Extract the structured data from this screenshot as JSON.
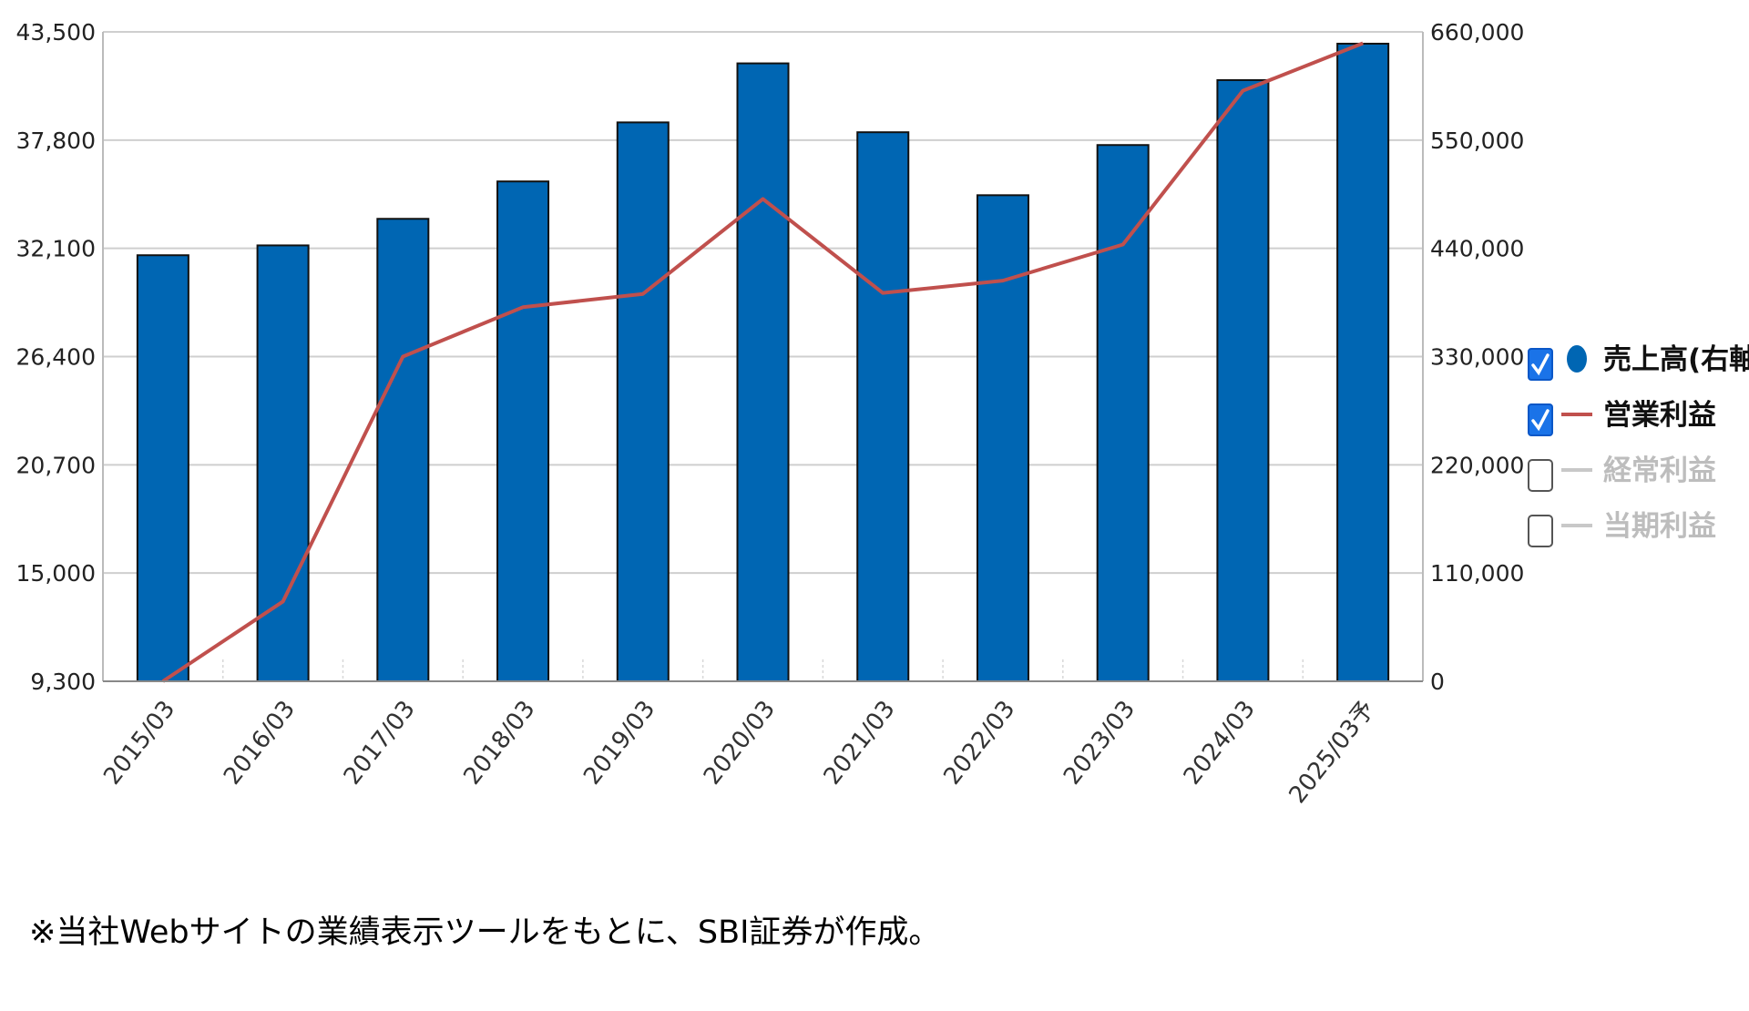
{
  "chart_data": {
    "type": "bar",
    "categories": [
      "2015/03",
      "2016/03",
      "2017/03",
      "2018/03",
      "2019/03",
      "2020/03",
      "2021/03",
      "2022/03",
      "2023/03",
      "2024/03",
      "2025/03予"
    ],
    "series": [
      {
        "name": "売上高(右軸)",
        "type": "bar",
        "axis": "right",
        "color": "#0066b3",
        "values": [
          433000,
          443000,
          470000,
          508000,
          568000,
          628000,
          558000,
          494000,
          545000,
          611000,
          648000
        ]
      },
      {
        "name": "営業利益",
        "type": "line",
        "axis": "left",
        "color": "#c0504d",
        "values": [
          9300,
          13500,
          26400,
          29000,
          29700,
          34700,
          29750,
          30400,
          32300,
          40400,
          42900
        ]
      }
    ],
    "y_left": {
      "ticks": [
        "43,500",
        "37,800",
        "32,100",
        "26,400",
        "20,700",
        "15,000",
        "9,300"
      ],
      "ylim": [
        9300,
        43500
      ]
    },
    "y_right": {
      "ticks": [
        "660,000",
        "550,000",
        "440,000",
        "330,000",
        "220,000",
        "110,000",
        "0"
      ],
      "ylim": [
        0,
        660000
      ]
    },
    "grid": true,
    "legend": {
      "position": "right",
      "items": [
        {
          "label": "売上高(右軸)",
          "checked": true,
          "symbol": "circle",
          "color": "#0066b3"
        },
        {
          "label": "営業利益",
          "checked": true,
          "symbol": "line",
          "color": "#c0504d"
        },
        {
          "label": "経常利益",
          "checked": false,
          "symbol": "line",
          "color": "#c8c8c8"
        },
        {
          "label": "当期利益",
          "checked": false,
          "symbol": "line",
          "color": "#c8c8c8"
        }
      ]
    }
  },
  "footnote": "※当社Webサイトの業績表示ツールをもとに、SBI証券が作成。"
}
